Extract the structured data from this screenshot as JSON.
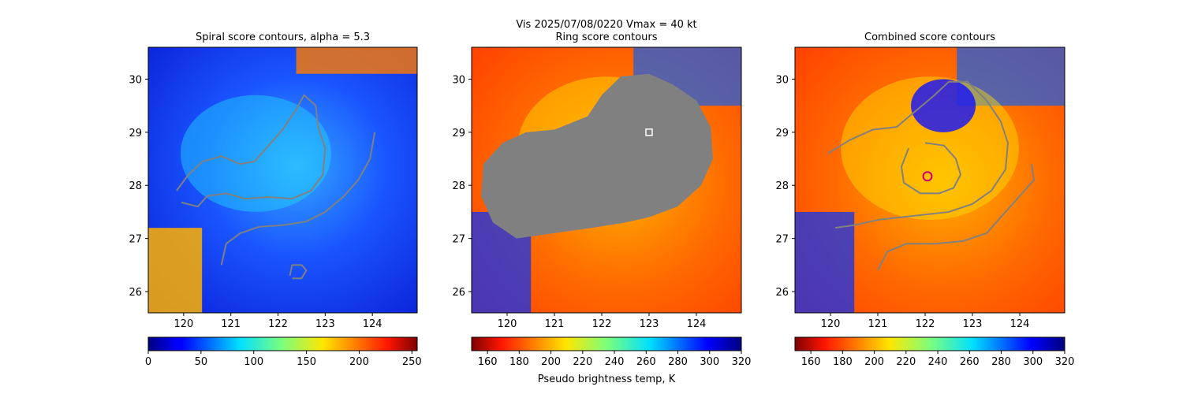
{
  "figure": {
    "suptitle_line1": "Vis  2025/07/08/0220    Vmax = 40 kt",
    "colorbar_label": "Pseudo brightness temp, K"
  },
  "chart_data": [
    {
      "type": "heatmap",
      "title": "Spiral score contours, alpha =  5.3",
      "xlabel": "",
      "ylabel": "",
      "xlim": [
        119.25,
        124.95
      ],
      "ylim": [
        25.6,
        30.6
      ],
      "xticks": [
        120,
        121,
        122,
        123,
        124
      ],
      "yticks": [
        26,
        27,
        28,
        29,
        30
      ],
      "colormap": "jet",
      "colorbar": {
        "ticks": [
          0,
          50,
          100,
          150,
          200,
          250
        ],
        "range": [
          0,
          255
        ],
        "reversed": false
      },
      "contours": [
        {
          "color": "#808080",
          "points": [
            [
              119.85,
              27.9
            ],
            [
              120.1,
              28.2
            ],
            [
              120.4,
              28.45
            ],
            [
              120.8,
              28.55
            ],
            [
              121.2,
              28.4
            ],
            [
              121.5,
              28.45
            ],
            [
              121.8,
              28.75
            ],
            [
              122.1,
              29.05
            ],
            [
              122.4,
              29.45
            ],
            [
              122.55,
              29.7
            ],
            [
              122.8,
              29.5
            ],
            [
              122.85,
              29.1
            ],
            [
              123.0,
              28.7
            ],
            [
              122.95,
              28.2
            ],
            [
              122.7,
              27.9
            ],
            [
              122.3,
              27.75
            ],
            [
              121.8,
              27.78
            ],
            [
              121.3,
              27.75
            ],
            [
              120.9,
              27.85
            ],
            [
              120.5,
              27.8
            ],
            [
              120.3,
              27.6
            ],
            [
              119.95,
              27.68
            ]
          ]
        },
        {
          "color": "#808080",
          "points": [
            [
              120.8,
              26.5
            ],
            [
              120.9,
              26.9
            ],
            [
              121.2,
              27.1
            ],
            [
              121.6,
              27.22
            ],
            [
              122.1,
              27.25
            ],
            [
              122.6,
              27.32
            ],
            [
              123.0,
              27.5
            ],
            [
              123.4,
              27.8
            ],
            [
              123.7,
              28.1
            ],
            [
              123.95,
              28.5
            ],
            [
              124.05,
              29.0
            ]
          ]
        },
        {
          "color": "#808080",
          "points": [
            [
              122.25,
              26.3
            ],
            [
              122.3,
              26.5
            ],
            [
              122.5,
              26.5
            ],
            [
              122.6,
              26.4
            ],
            [
              122.5,
              26.25
            ],
            [
              122.3,
              26.25
            ]
          ]
        }
      ],
      "overlays": []
    },
    {
      "type": "heatmap",
      "title": "Ring score contours",
      "xlabel": "",
      "ylabel": "",
      "xlim": [
        119.25,
        124.95
      ],
      "ylim": [
        25.6,
        30.6
      ],
      "xticks": [
        120,
        121,
        122,
        123,
        124
      ],
      "yticks": [
        26,
        27,
        28,
        29,
        30
      ],
      "colormap": "jet",
      "colorbar": {
        "ticks": [
          160,
          180,
          200,
          220,
          240,
          260,
          280,
          300,
          320
        ],
        "range": [
          150,
          320
        ],
        "reversed": true
      },
      "filled_region": {
        "color": "#808080",
        "points": [
          [
            119.5,
            28.4
          ],
          [
            119.9,
            28.8
          ],
          [
            120.4,
            29.0
          ],
          [
            121.0,
            29.05
          ],
          [
            121.7,
            29.3
          ],
          [
            122.0,
            29.7
          ],
          [
            122.4,
            30.05
          ],
          [
            123.0,
            30.1
          ],
          [
            123.5,
            29.9
          ],
          [
            124.0,
            29.6
          ],
          [
            124.3,
            29.1
          ],
          [
            124.35,
            28.5
          ],
          [
            124.1,
            28.0
          ],
          [
            123.6,
            27.6
          ],
          [
            123.0,
            27.4
          ],
          [
            122.5,
            27.3
          ],
          [
            121.8,
            27.2
          ],
          [
            121.0,
            27.1
          ],
          [
            120.2,
            27.0
          ],
          [
            119.7,
            27.3
          ],
          [
            119.45,
            27.8
          ]
        ]
      },
      "contours": [],
      "overlays": [
        {
          "marker": "square",
          "x": 123.0,
          "y": 29.0,
          "color": "#ffffff"
        }
      ]
    },
    {
      "type": "heatmap",
      "title": "Combined score contours",
      "xlabel": "",
      "ylabel": "",
      "xlim": [
        119.25,
        124.95
      ],
      "ylim": [
        25.6,
        30.6
      ],
      "xticks": [
        120,
        121,
        122,
        123,
        124
      ],
      "yticks": [
        26,
        27,
        28,
        29,
        30
      ],
      "colormap": "jet",
      "colorbar": {
        "ticks": [
          160,
          180,
          200,
          220,
          240,
          260,
          280,
          300,
          320
        ],
        "range": [
          150,
          320
        ],
        "reversed": true
      },
      "contours": [
        {
          "color": "#808080",
          "points": [
            [
              119.95,
              28.6
            ],
            [
              120.4,
              28.85
            ],
            [
              120.9,
              29.05
            ],
            [
              121.4,
              29.1
            ],
            [
              121.8,
              29.4
            ],
            [
              122.2,
              29.7
            ],
            [
              122.5,
              29.95
            ],
            [
              122.9,
              29.95
            ],
            [
              123.3,
              29.6
            ],
            [
              123.6,
              29.2
            ],
            [
              123.75,
              28.8
            ],
            [
              123.7,
              28.3
            ],
            [
              123.4,
              27.9
            ],
            [
              123.0,
              27.65
            ],
            [
              122.5,
              27.5
            ],
            [
              122.0,
              27.45
            ],
            [
              121.5,
              27.4
            ],
            [
              121.0,
              27.35
            ],
            [
              120.5,
              27.25
            ],
            [
              120.1,
              27.2
            ]
          ]
        },
        {
          "color": "#808080",
          "points": [
            [
              122.0,
              28.8
            ],
            [
              122.4,
              28.75
            ],
            [
              122.65,
              28.5
            ],
            [
              122.75,
              28.2
            ],
            [
              122.6,
              27.95
            ],
            [
              122.3,
              27.85
            ],
            [
              121.9,
              27.85
            ],
            [
              121.55,
              28.05
            ],
            [
              121.5,
              28.35
            ],
            [
              121.65,
              28.7
            ]
          ]
        },
        {
          "color": "#808080",
          "points": [
            [
              121.0,
              26.4
            ],
            [
              121.2,
              26.75
            ],
            [
              121.6,
              26.9
            ],
            [
              122.2,
              26.9
            ],
            [
              122.8,
              26.95
            ],
            [
              123.3,
              27.1
            ],
            [
              123.7,
              27.5
            ],
            [
              124.05,
              27.85
            ],
            [
              124.3,
              28.1
            ],
            [
              124.25,
              28.4
            ]
          ]
        }
      ],
      "overlays": [
        {
          "marker": "circle",
          "x": 122.05,
          "y": 28.17,
          "color": "#c8007a"
        }
      ]
    }
  ]
}
